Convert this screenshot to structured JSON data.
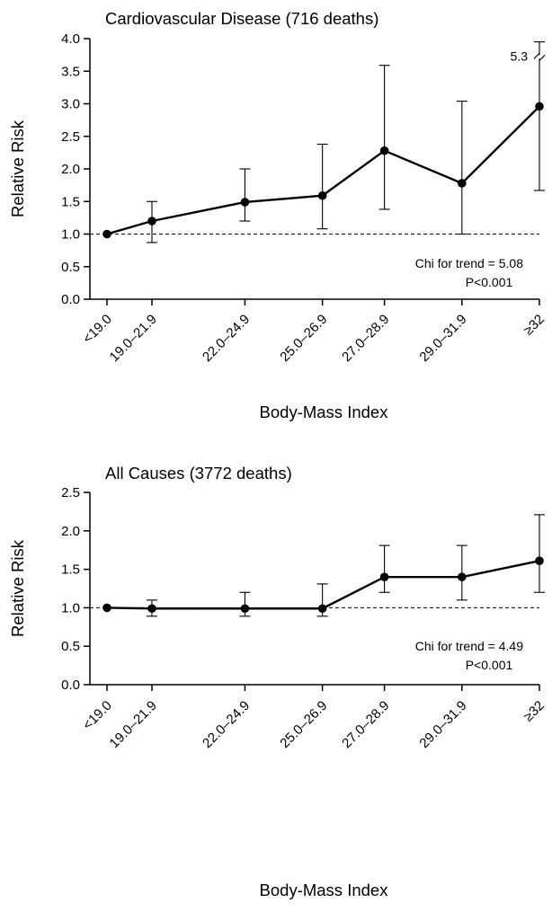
{
  "chart_data": [
    {
      "type": "line",
      "title": "Cardiovascular Disease (716 deaths)",
      "xlabel": "Body-Mass Index",
      "ylabel": "Relative Risk",
      "ylim": [
        0,
        4
      ],
      "yticks": [
        "0.0",
        "0.5",
        "1.0",
        "1.5",
        "2.0",
        "2.5",
        "3.0",
        "3.5",
        "4.0"
      ],
      "categories": [
        "<19.0",
        "19.0–21.9",
        "22.0–24.9",
        "25.0–26.9",
        "27.0–28.9",
        "29.0–31.9",
        "≥32"
      ],
      "x": [
        19.0,
        20.45,
        23.45,
        25.95,
        27.95,
        30.45,
        32.95
      ],
      "series": [
        {
          "values": [
            1.0,
            1.2,
            1.49,
            1.59,
            2.28,
            1.78,
            2.96
          ],
          "lower": [
            1.0,
            0.87,
            1.2,
            1.08,
            1.38,
            1.0,
            1.67
          ],
          "upper": [
            1.0,
            1.5,
            2.0,
            2.38,
            3.59,
            3.04,
            5.3
          ]
        }
      ],
      "reference_line": 1.0,
      "broken_upper_label": "5.3",
      "annotation": [
        "Chi for trend = 5.08",
        "P<0.001"
      ],
      "grid": false
    },
    {
      "type": "line",
      "title": "All Causes (3772 deaths)",
      "xlabel": "Body-Mass Index",
      "ylabel": "Relative Risk",
      "ylim": [
        0,
        2.5
      ],
      "yticks": [
        "0.0",
        "0.5",
        "1.0",
        "1.5",
        "2.0",
        "2.5"
      ],
      "categories": [
        "<19.0",
        "19.0–21.9",
        "22.0–24.9",
        "25.0–26.9",
        "27.0–28.9",
        "29.0–31.9",
        "≥32"
      ],
      "x": [
        19.0,
        20.45,
        23.45,
        25.95,
        27.95,
        30.45,
        32.95
      ],
      "series": [
        {
          "values": [
            1.0,
            0.99,
            0.99,
            0.99,
            1.4,
            1.4,
            1.61
          ],
          "lower": [
            1.0,
            0.89,
            0.89,
            0.89,
            1.2,
            1.1,
            1.2
          ],
          "upper": [
            1.0,
            1.1,
            1.2,
            1.31,
            1.81,
            1.81,
            2.21
          ]
        }
      ],
      "reference_line": 1.0,
      "annotation": [
        "Chi for trend = 4.49",
        "P<0.001"
      ],
      "grid": false
    }
  ]
}
